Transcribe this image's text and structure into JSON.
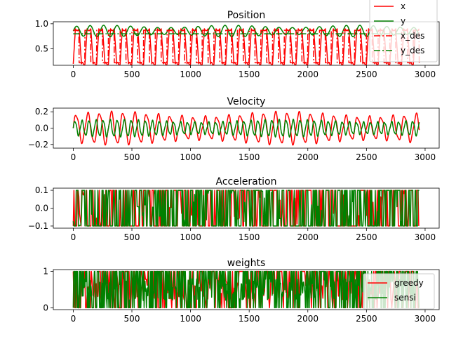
{
  "chart_data": [
    {
      "type": "line",
      "title": "Position",
      "xlim": [
        -170,
        3120
      ],
      "ylim": [
        0.17,
        1.04
      ],
      "xticks": [
        0,
        500,
        1000,
        1500,
        2000,
        2500,
        3000
      ],
      "yticks": [
        0.5,
        1.0
      ],
      "ytick_labels": [
        "0.5",
        "1.0"
      ],
      "legend": {
        "placement": "top-right",
        "entries": [
          "x",
          "y",
          "x_des",
          "y_des"
        ]
      },
      "series": [
        {
          "name": "x",
          "color": "#ff0000",
          "style": "solid",
          "gen": {
            "kind": "pos_x",
            "x_end": 2950,
            "period": 100,
            "low": 0.2,
            "high": 0.9
          }
        },
        {
          "name": "y",
          "color": "#008000",
          "style": "solid",
          "gen": {
            "kind": "pos_y",
            "x_end": 2950,
            "period": 115,
            "low": 0.74,
            "high": 0.97
          }
        },
        {
          "name": "x_des",
          "color": "#ff0000",
          "style": "dashdot",
          "gen": {
            "kind": "square",
            "x_end": 2950,
            "period": 100,
            "low": 0.22,
            "high": 0.87
          }
        },
        {
          "name": "y_des",
          "color": "#008000",
          "style": "dashdot",
          "gen": {
            "kind": "const",
            "x_end": 2950,
            "value": 0.8
          }
        }
      ]
    },
    {
      "type": "line",
      "title": "Velocity",
      "xlim": [
        -170,
        3120
      ],
      "ylim": [
        -0.245,
        0.245
      ],
      "xticks": [
        0,
        500,
        1000,
        1500,
        2000,
        2500,
        3000
      ],
      "yticks": [
        -0.2,
        0.0,
        0.2
      ],
      "ytick_labels": [
        "−0.2",
        "0.0",
        "0.2"
      ],
      "series": [
        {
          "name": "",
          "color": "#ff0000",
          "style": "solid",
          "gen": {
            "kind": "vel",
            "x_end": 2950,
            "period": 100,
            "amp": 0.19
          }
        },
        {
          "name": "",
          "color": "#008000",
          "style": "solid",
          "gen": {
            "kind": "vel",
            "x_end": 2950,
            "period": 60,
            "amp": 0.1
          }
        }
      ]
    },
    {
      "type": "line",
      "title": "Acceleration",
      "xlim": [
        -170,
        3120
      ],
      "ylim": [
        -0.112,
        0.112
      ],
      "xticks": [
        0,
        500,
        1000,
        1500,
        2000,
        2500,
        3000
      ],
      "yticks": [
        -0.1,
        0.0,
        0.1
      ],
      "ytick_labels": [
        "−0.1",
        "0.0",
        "0.1"
      ],
      "series": [
        {
          "name": "",
          "color": "#ff0000",
          "style": "solid",
          "gen": {
            "kind": "bang",
            "x_end": 2950,
            "step": 6,
            "amp": 0.1
          }
        },
        {
          "name": "",
          "color": "#008000",
          "style": "solid",
          "gen": {
            "kind": "bang",
            "x_end": 2950,
            "step": 5,
            "amp": 0.1
          }
        }
      ]
    },
    {
      "type": "line",
      "title": "weights",
      "xlim": [
        -170,
        3120
      ],
      "ylim": [
        -0.05,
        1.05
      ],
      "xticks": [
        0,
        500,
        1000,
        1500,
        2000,
        2500,
        3000
      ],
      "yticks": [
        0,
        1
      ],
      "ytick_labels": [
        "0",
        "1"
      ],
      "legend": {
        "placement": "right",
        "entries": [
          "greedy",
          "sensi"
        ]
      },
      "series": [
        {
          "name": "greedy",
          "color": "#ff0000",
          "style": "solid",
          "gen": {
            "kind": "weight",
            "x_end": 2950,
            "step": 7
          }
        },
        {
          "name": "sensi",
          "color": "#008000",
          "style": "solid",
          "gen": {
            "kind": "weight",
            "x_end": 2950,
            "step": 4
          }
        }
      ]
    }
  ]
}
